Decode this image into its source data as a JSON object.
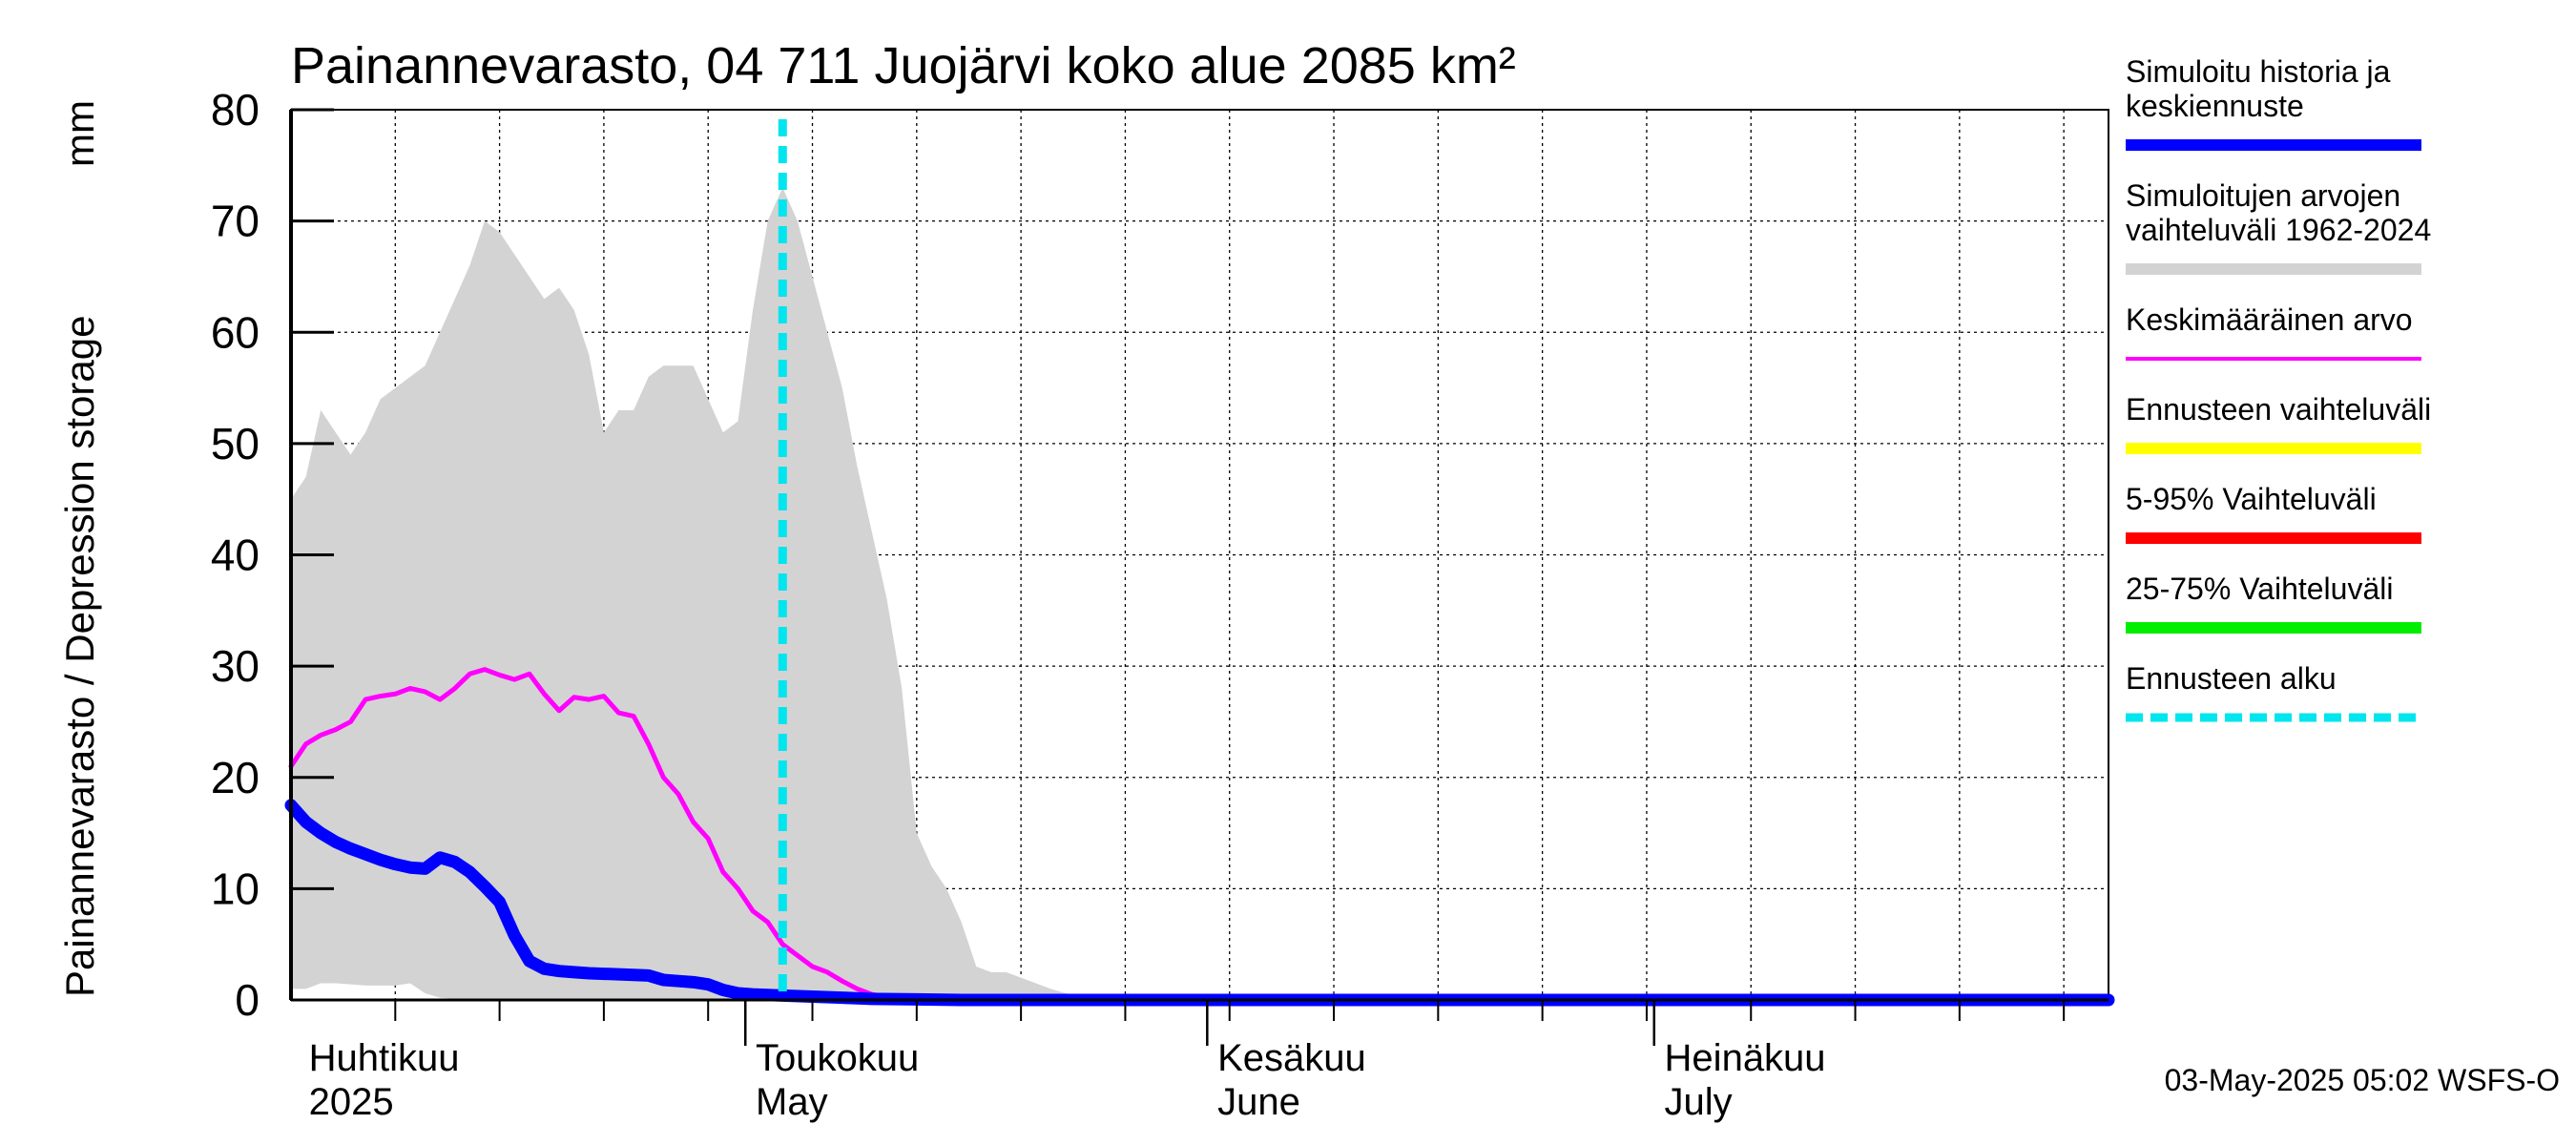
{
  "chart_data": {
    "type": "area",
    "title": "Painannevarasto, 04 711 Juojärvi koko alue 2085 km²",
    "ylabel": "Painannevarasto / Depression storage",
    "yunit": "mm",
    "ylim": [
      0,
      80
    ],
    "yticks": [
      0,
      10,
      20,
      30,
      40,
      50,
      60,
      70,
      80
    ],
    "xlim": [
      "2025-03-31",
      "2025-07-31"
    ],
    "x_month_labels": [
      {
        "fi": "Huhtikuu",
        "en": "2025",
        "date": "2025-04-01"
      },
      {
        "fi": "Toukokuu",
        "en": "May",
        "date": "2025-05-01"
      },
      {
        "fi": "Kesäkuu",
        "en": "June",
        "date": "2025-06-01"
      },
      {
        "fi": "Heinäkuu",
        "en": "July",
        "date": "2025-07-01"
      }
    ],
    "grid": true,
    "legend_position": "right",
    "forecast_start": "2025-05-03",
    "series": [
      {
        "name": "Simuloitujen arvojen vaihteluväli 1962-2024",
        "kind": "band",
        "color": "#d3d3d3",
        "x": [
          "2025-03-31",
          "2025-04-01",
          "2025-04-02",
          "2025-04-03",
          "2025-04-04",
          "2025-04-05",
          "2025-04-06",
          "2025-04-07",
          "2025-04-08",
          "2025-04-09",
          "2025-04-10",
          "2025-04-11",
          "2025-04-12",
          "2025-04-13",
          "2025-04-14",
          "2025-04-15",
          "2025-04-16",
          "2025-04-17",
          "2025-04-18",
          "2025-04-19",
          "2025-04-20",
          "2025-04-21",
          "2025-04-22",
          "2025-04-23",
          "2025-04-24",
          "2025-04-25",
          "2025-04-26",
          "2025-04-27",
          "2025-04-28",
          "2025-04-29",
          "2025-04-30",
          "2025-05-01",
          "2025-05-02",
          "2025-05-03",
          "2025-05-04",
          "2025-05-05",
          "2025-05-06",
          "2025-05-07",
          "2025-05-08",
          "2025-05-09",
          "2025-05-10",
          "2025-05-11",
          "2025-05-12",
          "2025-05-13",
          "2025-05-14",
          "2025-05-15",
          "2025-05-16",
          "2025-05-17",
          "2025-05-18",
          "2025-05-19",
          "2025-05-20",
          "2025-05-21",
          "2025-05-22",
          "2025-05-23",
          "2025-05-24",
          "2025-05-25",
          "2025-05-26",
          "2025-05-27",
          "2025-05-28",
          "2025-05-29",
          "2025-05-30",
          "2025-05-31",
          "2025-06-03",
          "2025-06-15",
          "2025-07-01",
          "2025-07-31"
        ],
        "upper": [
          45,
          47,
          53,
          51,
          49,
          51,
          54,
          55,
          56,
          57,
          60,
          63,
          66,
          70,
          69,
          67,
          65,
          63,
          64,
          62,
          58,
          51,
          53,
          53,
          56,
          57,
          57,
          57,
          54,
          51,
          52,
          62,
          70,
          73,
          70,
          65,
          60,
          55,
          48,
          42,
          36,
          28,
          15,
          12,
          10,
          7,
          3,
          2.5,
          2.5,
          2,
          1.5,
          1,
          0.6,
          0.4,
          0.3,
          0.2,
          0.2,
          0.1,
          0.1,
          0.1,
          0.1,
          0.1,
          0.1,
          0.1,
          0.1,
          0.1
        ],
        "lower": [
          1,
          1,
          1.5,
          1.5,
          1.4,
          1.3,
          1.3,
          1.3,
          1.5,
          0.6,
          0.2,
          0.1,
          0.1,
          0.1,
          0,
          0,
          0,
          0,
          0,
          0,
          0,
          0,
          0,
          0,
          0,
          0,
          0,
          0,
          0,
          0,
          0,
          0,
          0,
          0,
          0,
          0,
          0,
          0,
          0,
          0,
          0,
          0,
          0,
          0,
          0,
          0,
          0,
          0,
          0,
          0,
          0,
          0,
          0,
          0,
          0,
          0,
          0,
          0,
          0,
          0,
          0,
          0,
          0,
          0,
          0,
          0
        ]
      },
      {
        "name": "Keskimääräinen arvo",
        "kind": "line",
        "color": "#ff00ff",
        "x": [
          "2025-03-31",
          "2025-04-01",
          "2025-04-02",
          "2025-04-03",
          "2025-04-04",
          "2025-04-05",
          "2025-04-06",
          "2025-04-07",
          "2025-04-08",
          "2025-04-09",
          "2025-04-10",
          "2025-04-11",
          "2025-04-12",
          "2025-04-13",
          "2025-04-14",
          "2025-04-15",
          "2025-04-16",
          "2025-04-17",
          "2025-04-18",
          "2025-04-19",
          "2025-04-20",
          "2025-04-21",
          "2025-04-22",
          "2025-04-23",
          "2025-04-24",
          "2025-04-25",
          "2025-04-26",
          "2025-04-27",
          "2025-04-28",
          "2025-04-29",
          "2025-04-30",
          "2025-05-01",
          "2025-05-02",
          "2025-05-03",
          "2025-05-04",
          "2025-05-05",
          "2025-05-06",
          "2025-05-07",
          "2025-05-08",
          "2025-05-09",
          "2025-05-10",
          "2025-05-12",
          "2025-05-15",
          "2025-06-01",
          "2025-07-01",
          "2025-07-31"
        ],
        "y": [
          21,
          23,
          23.8,
          24.3,
          25,
          27,
          27.3,
          27.5,
          28,
          27.7,
          27,
          28,
          29.3,
          29.7,
          29.2,
          28.8,
          29.3,
          27.5,
          26,
          27.2,
          27,
          27.3,
          25.8,
          25.5,
          23,
          20,
          18.5,
          16,
          14.5,
          11.5,
          10,
          8,
          7,
          5,
          4,
          3,
          2.5,
          1.7,
          1,
          0.5,
          0.3,
          0.2,
          0.2,
          0.2,
          0.2,
          0.2
        ]
      },
      {
        "name": "Simuloitu historia ja keskiennuste",
        "kind": "line",
        "color": "#0000ff",
        "x": [
          "2025-03-31",
          "2025-04-01",
          "2025-04-02",
          "2025-04-03",
          "2025-04-04",
          "2025-04-05",
          "2025-04-06",
          "2025-04-07",
          "2025-04-08",
          "2025-04-09",
          "2025-04-10",
          "2025-04-11",
          "2025-04-12",
          "2025-04-13",
          "2025-04-14",
          "2025-04-15",
          "2025-04-16",
          "2025-04-17",
          "2025-04-18",
          "2025-04-19",
          "2025-04-20",
          "2025-04-21",
          "2025-04-22",
          "2025-04-23",
          "2025-04-24",
          "2025-04-25",
          "2025-04-26",
          "2025-04-27",
          "2025-04-28",
          "2025-04-29",
          "2025-04-30",
          "2025-05-01",
          "2025-05-03",
          "2025-05-05",
          "2025-05-07",
          "2025-05-09",
          "2025-05-12",
          "2025-05-15",
          "2025-06-01",
          "2025-07-01",
          "2025-07-31"
        ],
        "y": [
          17.5,
          16,
          15,
          14.2,
          13.6,
          13.1,
          12.6,
          12.2,
          11.9,
          11.8,
          12.8,
          12.4,
          11.5,
          10.2,
          8.8,
          5.8,
          3.5,
          2.8,
          2.6,
          2.5,
          2.4,
          2.35,
          2.3,
          2.25,
          2.2,
          1.8,
          1.7,
          1.6,
          1.4,
          0.9,
          0.6,
          0.5,
          0.4,
          0.3,
          0.2,
          0.1,
          0.05,
          0,
          0,
          0,
          0
        ]
      },
      {
        "name": "Ennusteen vaihteluväli",
        "kind": "legend-only",
        "color": "#ffff00"
      },
      {
        "name": "5-95% Vaihteluväli",
        "kind": "legend-only",
        "color": "#ff0000"
      },
      {
        "name": "25-75% Vaihteluväli",
        "kind": "legend-only",
        "color": "#00ee00"
      },
      {
        "name": "Ennusteen alku",
        "kind": "vline",
        "color": "#00e5ee"
      }
    ]
  },
  "legend": [
    {
      "lines": [
        "Simuloitu historia ja",
        "keskiennuste"
      ],
      "color": "#0000ff",
      "style": "thick"
    },
    {
      "lines": [
        "Simuloitujen arvojen",
        "vaihteluväli 1962-2024"
      ],
      "color": "#d3d3d3",
      "style": "thick"
    },
    {
      "lines": [
        "Keskimääräinen arvo"
      ],
      "color": "#ff00ff",
      "style": "thin"
    },
    {
      "lines": [
        "Ennusteen vaihteluväli"
      ],
      "color": "#ffff00",
      "style": "thick"
    },
    {
      "lines": [
        "5-95% Vaihteluväli"
      ],
      "color": "#ff0000",
      "style": "thick"
    },
    {
      "lines": [
        "25-75% Vaihteluväli"
      ],
      "color": "#00ee00",
      "style": "thick"
    },
    {
      "lines": [
        "Ennusteen alku"
      ],
      "color": "#00e5ee",
      "style": "dashed"
    }
  ],
  "timestamp": "03-May-2025 05:02 WSFS-O"
}
